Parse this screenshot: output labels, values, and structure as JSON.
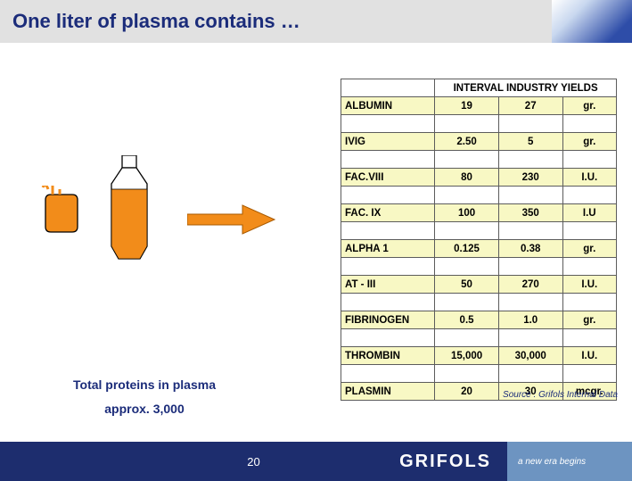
{
  "title": "One liter of plasma contains …",
  "caption_line1": "Total proteins in plasma",
  "caption_line2": "approx. 3,000",
  "table": {
    "header": "INTERVAL INDUSTRY YIELDS",
    "rows": [
      {
        "name": "ALBUMIN",
        "v1": "19",
        "v2": "27",
        "unit": "gr."
      },
      {
        "name": "IVIG",
        "v1": "2.50",
        "v2": "5",
        "unit": "gr."
      },
      {
        "name": "FAC.VIII",
        "v1": "80",
        "v2": "230",
        "unit": "I.U."
      },
      {
        "name": "FAC. IX",
        "v1": "100",
        "v2": "350",
        "unit": "I.U"
      },
      {
        "name": "ALPHA 1",
        "v1": "0.125",
        "v2": "0.38",
        "unit": "gr."
      },
      {
        "name": "AT - III",
        "v1": "50",
        "v2": "270",
        "unit": "I.U."
      },
      {
        "name": "FIBRINOGEN",
        "v1": "0.5",
        "v2": "1.0",
        "unit": "gr."
      },
      {
        "name": "THROMBIN",
        "v1": "15,000",
        "v2": "30,000",
        "unit": "I.U."
      },
      {
        "name": "PLASMIN",
        "v1": "20",
        "v2": "30",
        "unit": "mcgr."
      }
    ]
  },
  "source": "Source : Grifols Internal Data",
  "page_number": "20",
  "brand": "GRIFOLS",
  "tagline": "a new era begins",
  "colors": {
    "orange_fill": "#f28c1a",
    "orange_stroke": "#000000",
    "arrow_fill": "#f28c1a",
    "navy": "#1b2c7a",
    "row_bg": "#f8f8c4",
    "title_bg": "#e1e1e1",
    "footer_bg": "#1d2d6e",
    "footer_right_bg": "#6d94c1"
  }
}
